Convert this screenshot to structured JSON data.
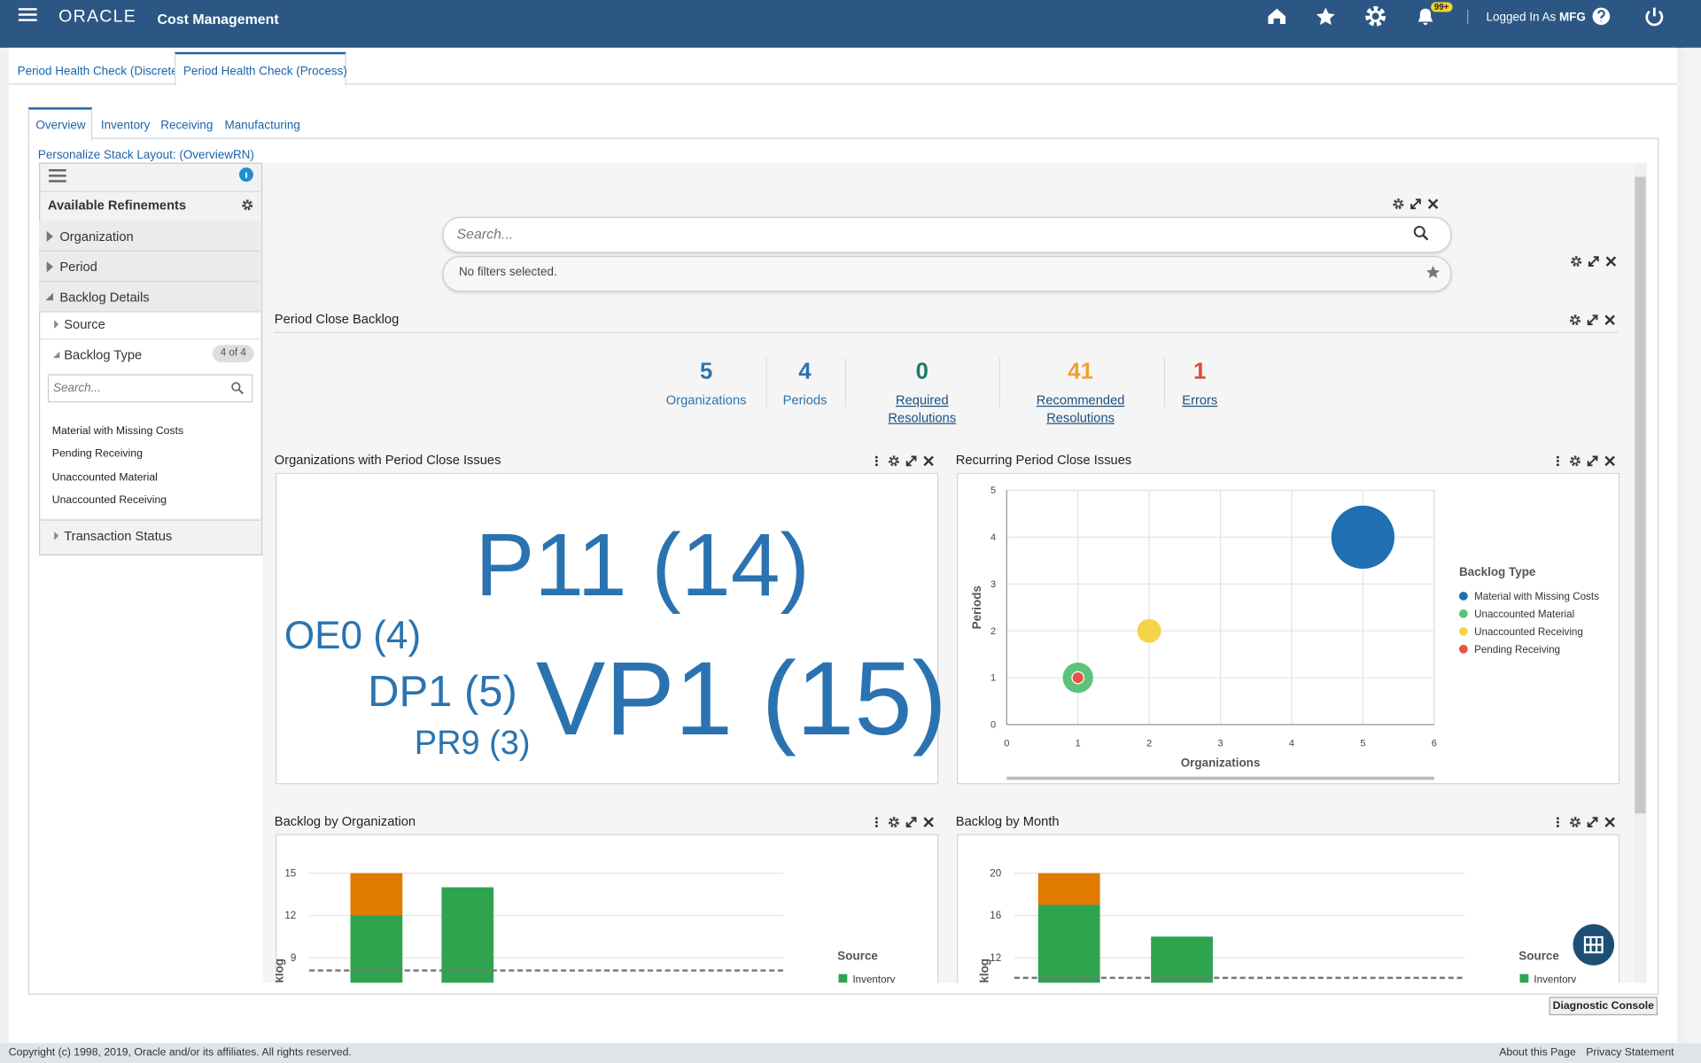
{
  "header": {
    "brand": "ORACLE",
    "app": "Cost Management",
    "badge": "99+",
    "logged_in": "Logged In As",
    "user": "MFG"
  },
  "tabs": [
    "Period Health Check (Discrete)",
    "Period Health Check (Process)"
  ],
  "subtabs": [
    "Overview",
    "Inventory",
    "Receiving",
    "Manufacturing"
  ],
  "personalize": "Personalize Stack Layout: (OverviewRN)",
  "refinements": {
    "title": "Available Refinements",
    "groups": [
      "Organization",
      "Period",
      "Backlog Details"
    ],
    "subgroups": [
      "Source",
      "Backlog Type",
      "Transaction Status"
    ],
    "count": "4 of 4",
    "search_placeholder": "Search...",
    "values": [
      "Material with Missing Costs",
      "Pending Receiving",
      "Unaccounted Material",
      "Unaccounted Receiving"
    ]
  },
  "search": {
    "placeholder": "Search...",
    "filters": "No filters selected."
  },
  "backlog": {
    "title": "Period Close Backlog",
    "metrics": [
      {
        "value": 5,
        "label": "Organizations",
        "color": "#2a73b0",
        "link": false
      },
      {
        "value": 4,
        "label": "Periods",
        "color": "#2a73b0",
        "link": false
      },
      {
        "value": 0,
        "label": "Required Resolutions",
        "color": "#1f7a68",
        "link": true
      },
      {
        "value": 41,
        "label": "Recommended Resolutions",
        "color": "#f0a22e",
        "link": true
      },
      {
        "value": 1,
        "label": "Errors",
        "color": "#e0473c",
        "link": true
      }
    ]
  },
  "word_cloud": {
    "title": "Organizations with Period Close Issues",
    "color": "#2a73b0",
    "words": [
      "P11 (14)",
      "OE0 (4)",
      "DP1 (5)",
      "VP1 (15)",
      "PR9 (3)"
    ]
  },
  "bubble_chart": {
    "type": "bubble",
    "title": "Recurring Period Close Issues",
    "xlabel": "Organizations",
    "ylabel": "Periods",
    "legend_title": "Backlog Type",
    "xlim": [
      0,
      6
    ],
    "xticks": [
      0,
      1,
      2,
      3,
      4,
      5,
      6
    ],
    "ylim": [
      0,
      5
    ],
    "yticks": [
      0,
      1,
      2,
      3,
      4,
      5
    ],
    "grid": true,
    "series": [
      {
        "name": "Material with Missing Costs",
        "color": "#1f6fb2",
        "x": [
          5
        ],
        "y": [
          4
        ],
        "size": [
          28
        ]
      },
      {
        "name": "Unaccounted Material",
        "color": "#5cc47a",
        "x": [
          1
        ],
        "y": [
          1
        ],
        "size": [
          6.5
        ]
      },
      {
        "name": "Unaccounted Receiving",
        "color": "#f6d44a",
        "x": [
          2
        ],
        "y": [
          2
        ],
        "size": [
          4
        ]
      },
      {
        "name": "Pending Receiving",
        "color": "#e8553f",
        "x": [
          1
        ],
        "y": [
          1
        ],
        "size": [
          1
        ]
      }
    ]
  },
  "org_chart": {
    "type": "bar",
    "stacked": true,
    "title": "Backlog by Organization",
    "ylabel": "Backlog",
    "legend_title": "Source",
    "categories": [
      null,
      null
    ],
    "series": [
      {
        "name": "Inventory",
        "color": "#2ea44f",
        "values": [
          12,
          14
        ]
      },
      {
        "name": null,
        "color": "#e07b00",
        "values": [
          3,
          0
        ]
      }
    ],
    "reference_line": 8.1,
    "ylim": [
      0,
      15
    ],
    "yticks": [
      9,
      12,
      15
    ],
    "grid": true
  },
  "month_chart": {
    "type": "bar",
    "stacked": true,
    "title": "Backlog by Month",
    "ylabel": "Backlog",
    "legend_title": "Source",
    "categories": [
      null,
      null
    ],
    "series": [
      {
        "name": "Inventory",
        "color": "#2ea44f",
        "values": [
          17,
          14
        ]
      },
      {
        "name": null,
        "color": "#e07b00",
        "values": [
          3,
          0
        ]
      }
    ],
    "reference_line": 10.1,
    "ylim": [
      0,
      20
    ],
    "yticks": [
      12,
      16,
      20
    ],
    "grid": true
  },
  "footer": {
    "copyright": "Copyright (c) 1998, 2019, Oracle and/or its affiliates. All rights reserved.",
    "links": [
      "About this Page",
      "Privacy Statement"
    ],
    "console": "Diagnostic Console"
  }
}
